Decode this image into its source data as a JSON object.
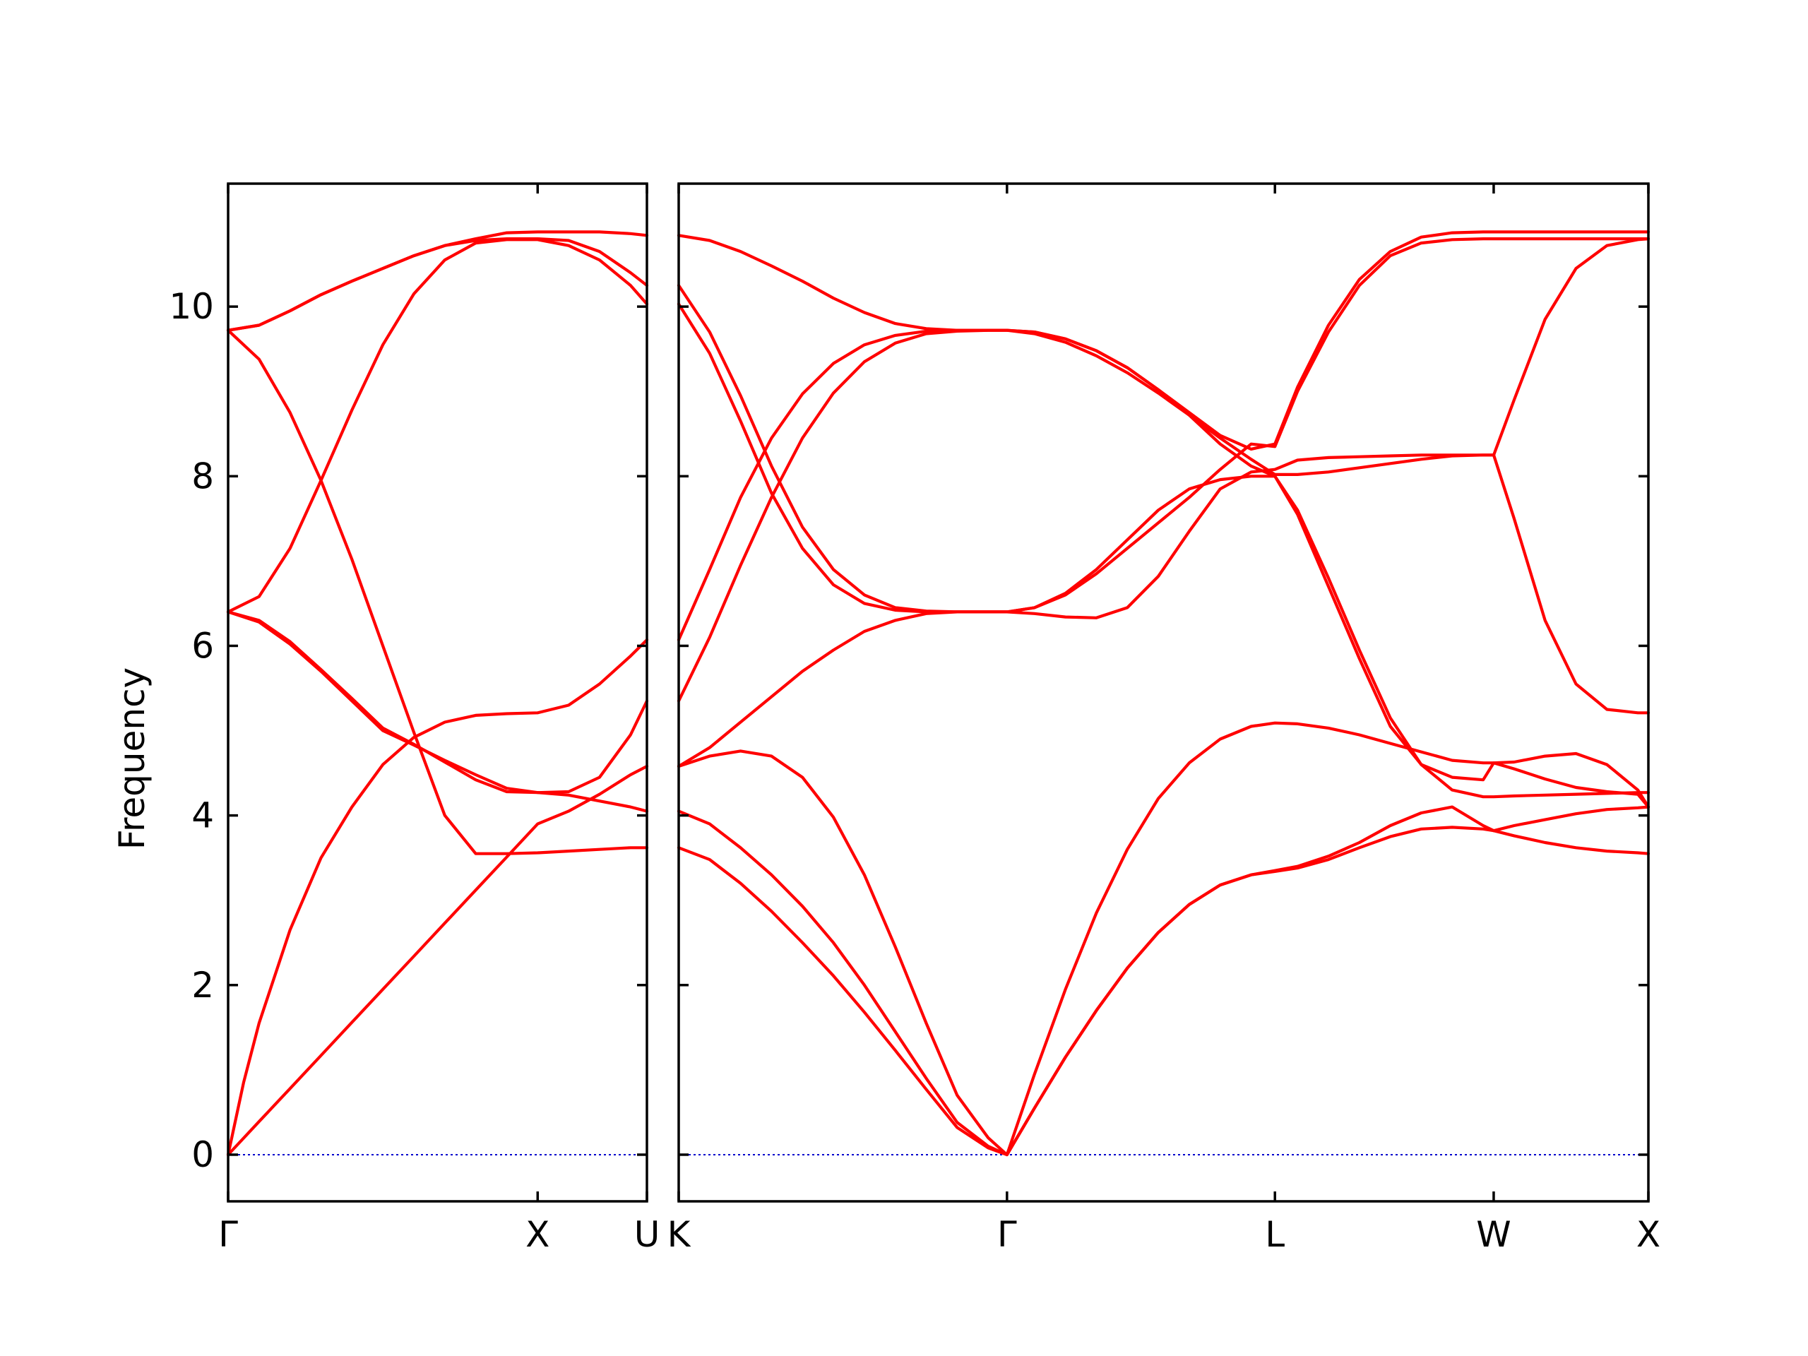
{
  "chart_data": {
    "type": "line",
    "ylabel": "Frequency",
    "ylim": [
      -0.55,
      11.45
    ],
    "yticks": [
      0,
      2,
      4,
      6,
      8,
      10
    ],
    "grid": false,
    "line_color": "#ff0000",
    "zero_line_color": "#0000cc",
    "panels": [
      {
        "xticks": [
          {
            "label": "Γ",
            "x": 0
          },
          {
            "label": "X",
            "x": 1
          },
          {
            "label": "U",
            "x": 1.353
          }
        ],
        "xlim": [
          0,
          1.353
        ],
        "series": [
          {
            "x": [
              0,
              0.1,
              0.2,
              0.3,
              0.4,
              0.5,
              0.6,
              0.7,
              0.8,
              0.9,
              1.0,
              1.1,
              1.2,
              1.3,
              1.353
            ],
            "values": [
              0,
              0.39,
              0.78,
              1.17,
              1.56,
              1.95,
              2.34,
              2.73,
              3.12,
              3.51,
              3.9,
              4.05,
              4.25,
              4.48,
              4.58
            ]
          },
          {
            "x": [
              0,
              0.05,
              0.1,
              0.2,
              0.3,
              0.4,
              0.5,
              0.6,
              0.7,
              0.8,
              0.9,
              1.0,
              1.1,
              1.2,
              1.3,
              1.353
            ],
            "values": [
              0,
              0.85,
              1.55,
              2.65,
              3.5,
              4.1,
              4.6,
              4.92,
              5.1,
              5.18,
              5.2,
              5.21,
              5.3,
              5.55,
              5.88,
              6.07
            ]
          },
          {
            "x": [
              0,
              0.1,
              0.2,
              0.3,
              0.4,
              0.5,
              0.6,
              0.7,
              0.8,
              0.9,
              1.0,
              1.1,
              1.2,
              1.3,
              1.353
            ],
            "values": [
              6.4,
              6.28,
              6.02,
              5.7,
              5.35,
              5.0,
              4.83,
              4.65,
              4.48,
              4.32,
              4.27,
              4.28,
              4.45,
              4.95,
              5.35
            ]
          },
          {
            "x": [
              0,
              0.1,
              0.2,
              0.3,
              0.4,
              0.5,
              0.6,
              0.7,
              0.8,
              0.9,
              1.0,
              1.1,
              1.2,
              1.3,
              1.353
            ],
            "values": [
              6.4,
              6.3,
              6.05,
              5.72,
              5.38,
              5.03,
              4.84,
              4.63,
              4.42,
              4.28,
              4.27,
              4.24,
              4.17,
              4.1,
              4.05
            ]
          },
          {
            "x": [
              0,
              0.1,
              0.2,
              0.3,
              0.4,
              0.5,
              0.6,
              0.7,
              0.8,
              0.9,
              1.0,
              1.1,
              1.2,
              1.3,
              1.353
            ],
            "values": [
              9.72,
              9.38,
              8.75,
              7.95,
              7.02,
              6.0,
              4.98,
              4.0,
              3.55,
              3.55,
              3.56,
              3.58,
              3.6,
              3.62,
              3.62
            ]
          },
          {
            "x": [
              0,
              0.1,
              0.2,
              0.3,
              0.4,
              0.5,
              0.6,
              0.7,
              0.8,
              0.9,
              1.0,
              1.1,
              1.2,
              1.3,
              1.353
            ],
            "values": [
              6.4,
              6.58,
              7.15,
              7.95,
              8.78,
              9.55,
              10.15,
              10.55,
              10.75,
              10.79,
              10.79,
              10.72,
              10.55,
              10.25,
              10.03
            ]
          },
          {
            "x": [
              0,
              0.1,
              0.2,
              0.3,
              0.4,
              0.5,
              0.6,
              0.7,
              0.8,
              0.9,
              1.0,
              1.1,
              1.2,
              1.3,
              1.353
            ],
            "values": [
              9.72,
              9.78,
              9.95,
              10.14,
              10.3,
              10.45,
              10.6,
              10.72,
              10.78,
              10.8,
              10.8,
              10.78,
              10.65,
              10.4,
              10.25
            ]
          },
          {
            "x": [
              0,
              0.1,
              0.2,
              0.3,
              0.4,
              0.5,
              0.6,
              0.7,
              0.8,
              0.9,
              1.0,
              1.1,
              1.2,
              1.3,
              1.353
            ],
            "values": [
              9.72,
              9.78,
              9.95,
              10.14,
              10.3,
              10.45,
              10.6,
              10.72,
              10.8,
              10.87,
              10.88,
              10.88,
              10.88,
              10.86,
              10.84
            ]
          }
        ]
      },
      {
        "xticks": [
          {
            "label": "K",
            "x": 0
          },
          {
            "label": "Γ",
            "x": 1.061
          },
          {
            "label": "L",
            "x": 1.927
          },
          {
            "label": "W",
            "x": 2.634
          },
          {
            "label": "X",
            "x": 3.134
          }
        ],
        "xlim": [
          0,
          3.134
        ],
        "series": [
          {
            "x": [
              0,
              0.1,
              0.2,
              0.3,
              0.4,
              0.5,
              0.6,
              0.7,
              0.8,
              0.9,
              1.0,
              1.061,
              1.15,
              1.25,
              1.35,
              1.45,
              1.55,
              1.65,
              1.75,
              1.85,
              1.927,
              2.0,
              2.1,
              2.2,
              2.3,
              2.4,
              2.5,
              2.6,
              2.634,
              2.7,
              2.8,
              2.9,
              3.0,
              3.1,
              3.134
            ],
            "values": [
              3.62,
              3.48,
              3.2,
              2.87,
              2.5,
              2.11,
              1.68,
              1.23,
              0.77,
              0.32,
              0.08,
              0,
              0.55,
              1.15,
              1.7,
              2.2,
              2.62,
              2.95,
              3.18,
              3.3,
              3.34,
              3.38,
              3.48,
              3.62,
              3.75,
              3.84,
              3.86,
              3.84,
              3.82,
              3.76,
              3.68,
              3.62,
              3.58,
              3.56,
              3.55
            ]
          },
          {
            "x": [
              0,
              0.1,
              0.2,
              0.3,
              0.4,
              0.5,
              0.6,
              0.7,
              0.8,
              0.9,
              1.0,
              1.061,
              1.15,
              1.25,
              1.35,
              1.45,
              1.55,
              1.65,
              1.75,
              1.85,
              1.927,
              2.0,
              2.1,
              2.2,
              2.3,
              2.4,
              2.5,
              2.6,
              2.634,
              2.7,
              2.8,
              2.9,
              3.0,
              3.1,
              3.134
            ],
            "values": [
              4.05,
              3.9,
              3.62,
              3.3,
              2.93,
              2.5,
              2.0,
              1.45,
              0.9,
              0.38,
              0.1,
              0,
              0.55,
              1.15,
              1.7,
              2.2,
              2.62,
              2.95,
              3.18,
              3.3,
              3.35,
              3.4,
              3.52,
              3.68,
              3.88,
              4.03,
              4.1,
              3.88,
              3.82,
              3.88,
              3.95,
              4.02,
              4.07,
              4.09,
              4.1
            ]
          },
          {
            "x": [
              0,
              0.1,
              0.2,
              0.3,
              0.4,
              0.5,
              0.6,
              0.7,
              0.8,
              0.9,
              1.0,
              1.061,
              1.15,
              1.25,
              1.35,
              1.45,
              1.55,
              1.65,
              1.75,
              1.85,
              1.927,
              2.0,
              2.1,
              2.2,
              2.3,
              2.4,
              2.5,
              2.6,
              2.634,
              2.7,
              2.8,
              2.9,
              3.0,
              3.1,
              3.134
            ],
            "values": [
              4.58,
              4.7,
              4.76,
              4.7,
              4.45,
              3.98,
              3.3,
              2.45,
              1.55,
              0.7,
              0.2,
              0,
              0.95,
              1.95,
              2.85,
              3.6,
              4.2,
              4.62,
              4.9,
              5.05,
              5.09,
              5.08,
              5.03,
              4.95,
              4.85,
              4.75,
              4.65,
              4.62,
              4.62,
              4.63,
              4.7,
              4.73,
              4.6,
              4.3,
              4.1
            ]
          },
          {
            "x": [
              0,
              0.1,
              0.2,
              0.3,
              0.4,
              0.5,
              0.6,
              0.7,
              0.8,
              0.9,
              1.0,
              1.061,
              1.15,
              1.25,
              1.35,
              1.45,
              1.55,
              1.65,
              1.75,
              1.85,
              1.927,
              2.0,
              2.1,
              2.2,
              2.3,
              2.4,
              2.5,
              2.6,
              2.634,
              2.7,
              2.8,
              2.9,
              3.0,
              3.1,
              3.134
            ],
            "values": [
              4.58,
              4.8,
              5.1,
              5.4,
              5.7,
              5.95,
              6.17,
              6.3,
              6.38,
              6.4,
              6.4,
              6.4,
              6.45,
              6.62,
              6.9,
              7.25,
              7.6,
              7.85,
              7.96,
              8.0,
              8.0,
              7.6,
              6.8,
              5.95,
              5.15,
              4.6,
              4.3,
              4.22,
              4.22,
              4.23,
              4.24,
              4.25,
              4.26,
              4.27,
              4.27
            ]
          },
          {
            "x": [
              0,
              0.1,
              0.2,
              0.3,
              0.4,
              0.5,
              0.6,
              0.7,
              0.8,
              0.9,
              1.0,
              1.061,
              1.15,
              1.25,
              1.35,
              1.45,
              1.55,
              1.65,
              1.75,
              1.85,
              1.927,
              2.0,
              2.1,
              2.2,
              2.3,
              2.4,
              2.5,
              2.6,
              2.634,
              2.7,
              2.8,
              2.9,
              3.0,
              3.1,
              3.134
            ],
            "values": [
              5.35,
              6.1,
              6.95,
              7.75,
              8.45,
              8.98,
              9.35,
              9.57,
              9.68,
              9.71,
              9.72,
              9.72,
              9.7,
              9.62,
              9.48,
              9.28,
              9.02,
              8.72,
              8.38,
              8.12,
              8.0,
              7.55,
              6.7,
              5.85,
              5.05,
              4.6,
              4.45,
              4.42,
              4.62,
              4.55,
              4.43,
              4.33,
              4.28,
              4.25,
              4.1
            ]
          },
          {
            "x": [
              0,
              0.1,
              0.2,
              0.3,
              0.4,
              0.5,
              0.6,
              0.7,
              0.8,
              0.9,
              1.0,
              1.061,
              1.15,
              1.25,
              1.35,
              1.45,
              1.55,
              1.65,
              1.75,
              1.85,
              1.927,
              2.0,
              2.1,
              2.2,
              2.3,
              2.4,
              2.5,
              2.6,
              2.634,
              2.7,
              2.8,
              2.9,
              3.0,
              3.1,
              3.134
            ],
            "values": [
              6.07,
              6.9,
              7.75,
              8.45,
              8.97,
              9.33,
              9.55,
              9.66,
              9.71,
              9.72,
              9.72,
              9.72,
              9.68,
              9.58,
              9.42,
              9.22,
              8.98,
              8.72,
              8.45,
              8.2,
              8.02,
              8.02,
              8.05,
              8.1,
              8.15,
              8.2,
              8.24,
              8.25,
              8.25,
              7.5,
              6.3,
              5.55,
              5.25,
              5.21,
              5.21
            ]
          },
          {
            "x": [
              0,
              0.1,
              0.2,
              0.3,
              0.4,
              0.5,
              0.6,
              0.7,
              0.8,
              0.9,
              1.0,
              1.061,
              1.15,
              1.25,
              1.35,
              1.45,
              1.55,
              1.65,
              1.75,
              1.85,
              1.927,
              2.0,
              2.1,
              2.2,
              2.3,
              2.4,
              2.5,
              2.6,
              2.634,
              2.7,
              2.8,
              2.9,
              3.0,
              3.1,
              3.134
            ],
            "values": [
              10.03,
              9.45,
              8.65,
              7.8,
              7.15,
              6.72,
              6.5,
              6.42,
              6.4,
              6.4,
              6.4,
              6.4,
              6.38,
              6.34,
              6.33,
              6.45,
              6.82,
              7.35,
              7.85,
              8.05,
              8.08,
              8.19,
              8.22,
              8.23,
              8.24,
              8.25,
              8.25,
              8.25,
              8.25,
              8.9,
              9.85,
              10.45,
              10.72,
              10.79,
              10.8
            ]
          },
          {
            "x": [
              0,
              0.1,
              0.2,
              0.3,
              0.4,
              0.5,
              0.6,
              0.7,
              0.8,
              0.9,
              1.0,
              1.061,
              1.15,
              1.25,
              1.35,
              1.45,
              1.55,
              1.65,
              1.75,
              1.85,
              1.927,
              2.0,
              2.1,
              2.2,
              2.3,
              2.4,
              2.5,
              2.6,
              2.634,
              2.7,
              2.8,
              2.9,
              3.0,
              3.1,
              3.134
            ],
            "values": [
              10.25,
              9.7,
              8.95,
              8.12,
              7.4,
              6.9,
              6.6,
              6.45,
              6.41,
              6.4,
              6.4,
              6.4,
              6.45,
              6.6,
              6.85,
              7.15,
              7.45,
              7.75,
              8.08,
              8.38,
              8.35,
              9.0,
              9.7,
              10.25,
              10.6,
              10.75,
              10.79,
              10.8,
              10.8,
              10.8,
              10.8,
              10.8,
              10.8,
              10.8,
              10.8
            ]
          },
          {
            "x": [
              0,
              0.1,
              0.2,
              0.3,
              0.4,
              0.5,
              0.6,
              0.7,
              0.8,
              0.9,
              1.0,
              1.061,
              1.15,
              1.25,
              1.35,
              1.45,
              1.55,
              1.65,
              1.75,
              1.85,
              1.927,
              2.0,
              2.1,
              2.2,
              2.3,
              2.4,
              2.5,
              2.6,
              2.634,
              2.7,
              2.8,
              2.9,
              3.0,
              3.1,
              3.134
            ],
            "values": [
              10.84,
              10.78,
              10.65,
              10.48,
              10.3,
              10.1,
              9.93,
              9.8,
              9.74,
              9.72,
              9.72,
              9.72,
              9.7,
              9.62,
              9.48,
              9.28,
              9.02,
              8.75,
              8.48,
              8.32,
              8.38,
              9.05,
              9.78,
              10.32,
              10.65,
              10.82,
              10.87,
              10.88,
              10.88,
              10.88,
              10.88,
              10.88,
              10.88,
              10.88,
              10.88
            ]
          }
        ]
      }
    ]
  }
}
